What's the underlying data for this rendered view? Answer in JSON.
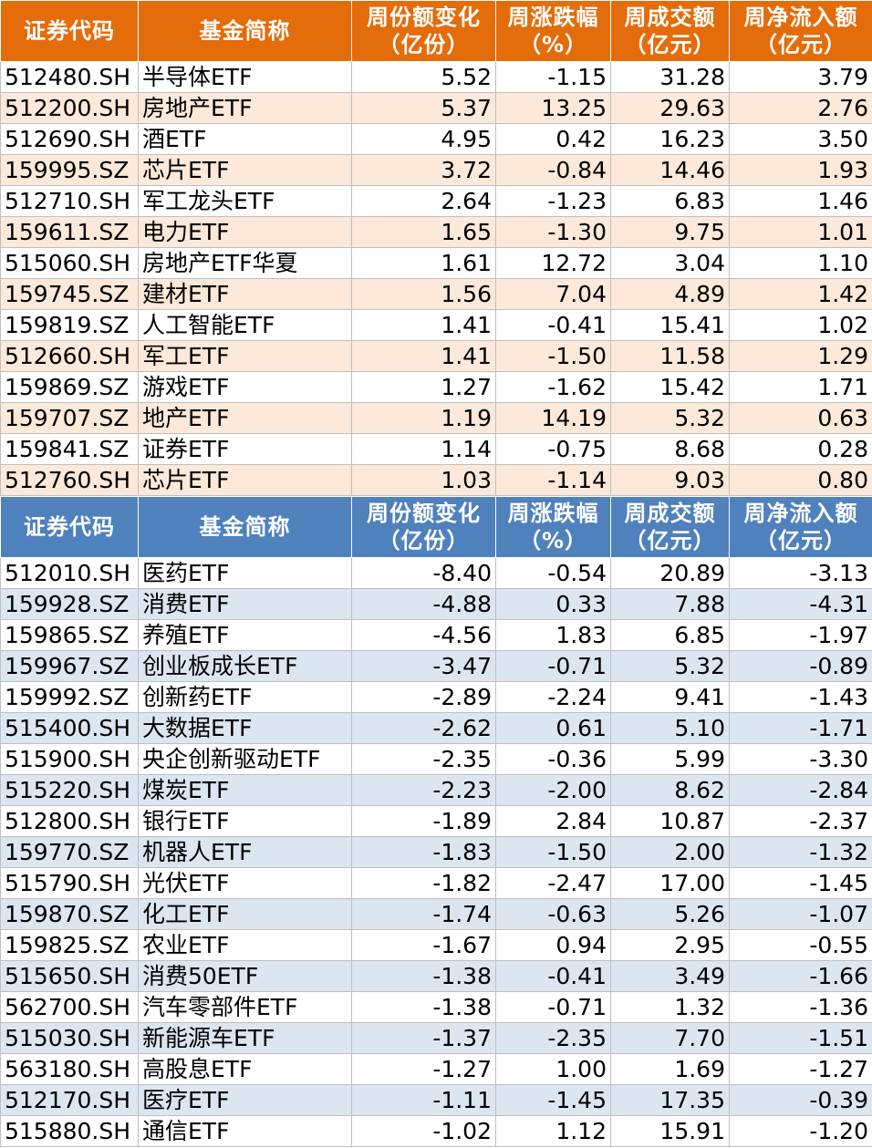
{
  "top_table": {
    "headers": [
      "证券代码",
      "基金简称",
      "周份额变化\n（亿份）",
      "周涨跌幅\n（%）",
      "周成交额\n（亿元）",
      "周净流入额\n（亿元）"
    ],
    "rows": [
      [
        "512480.SH",
        "半导体ETF",
        "5.52",
        "-1.15",
        "31.28",
        "3.79"
      ],
      [
        "512200.SH",
        "房地产ETF",
        "5.37",
        "13.25",
        "29.63",
        "2.76"
      ],
      [
        "512690.SH",
        "酒ETF",
        "4.95",
        "0.42",
        "16.23",
        "3.50"
      ],
      [
        "159995.SZ",
        "芯片ETF",
        "3.72",
        "-0.84",
        "14.46",
        "1.93"
      ],
      [
        "512710.SH",
        "军工龙头ETF",
        "2.64",
        "-1.23",
        "6.83",
        "1.46"
      ],
      [
        "159611.SZ",
        "电力ETF",
        "1.65",
        "-1.30",
        "9.75",
        "1.01"
      ],
      [
        "515060.SH",
        "房地产ETF华夏",
        "1.61",
        "12.72",
        "3.04",
        "1.10"
      ],
      [
        "159745.SZ",
        "建材ETF",
        "1.56",
        "7.04",
        "4.89",
        "1.42"
      ],
      [
        "159819.SZ",
        "人工智能ETF",
        "1.41",
        "-0.41",
        "15.41",
        "1.02"
      ],
      [
        "512660.SH",
        "军工ETF",
        "1.41",
        "-1.50",
        "11.58",
        "1.29"
      ],
      [
        "159869.SZ",
        "游戏ETF",
        "1.27",
        "-1.62",
        "15.42",
        "1.71"
      ],
      [
        "159707.SZ",
        "地产ETF",
        "1.19",
        "14.19",
        "5.32",
        "0.63"
      ],
      [
        "159841.SZ",
        "证券ETF",
        "1.14",
        "-0.75",
        "8.68",
        "0.28"
      ],
      [
        "512760.SH",
        "芯片ETF",
        "1.03",
        "-1.14",
        "9.03",
        "0.80"
      ]
    ]
  },
  "bottom_table": {
    "headers": [
      "证券代码",
      "基金简称",
      "周份额变化\n（亿份）",
      "周涨跌幅\n（%）",
      "周成交额\n（亿元）",
      "周净流入额\n（亿元）"
    ],
    "rows": [
      [
        "512010.SH",
        "医药ETF",
        "-8.40",
        "-0.54",
        "20.89",
        "-3.13"
      ],
      [
        "159928.SZ",
        "消费ETF",
        "-4.88",
        "0.33",
        "7.88",
        "-4.31"
      ],
      [
        "159865.SZ",
        "养殖ETF",
        "-4.56",
        "1.83",
        "6.85",
        "-1.97"
      ],
      [
        "159967.SZ",
        "创业板成长ETF",
        "-3.47",
        "-0.71",
        "5.32",
        "-0.89"
      ],
      [
        "159992.SZ",
        "创新药ETF",
        "-2.89",
        "-2.24",
        "9.41",
        "-1.43"
      ],
      [
        "515400.SH",
        "大数据ETF",
        "-2.62",
        "0.61",
        "5.10",
        "-1.71"
      ],
      [
        "515900.SH",
        "央企创新驱动ETF",
        "-2.35",
        "-0.36",
        "5.99",
        "-3.30"
      ],
      [
        "515220.SH",
        "煤炭ETF",
        "-2.23",
        "-2.00",
        "8.62",
        "-2.84"
      ],
      [
        "512800.SH",
        "银行ETF",
        "-1.89",
        "2.84",
        "10.87",
        "-2.37"
      ],
      [
        "159770.SZ",
        "机器人ETF",
        "-1.83",
        "-1.50",
        "2.00",
        "-1.32"
      ],
      [
        "515790.SH",
        "光伏ETF",
        "-1.82",
        "-2.47",
        "17.00",
        "-1.45"
      ],
      [
        "159870.SZ",
        "化工ETF",
        "-1.74",
        "-0.63",
        "5.26",
        "-1.07"
      ],
      [
        "159825.SZ",
        "农业ETF",
        "-1.67",
        "0.94",
        "2.95",
        "-0.55"
      ],
      [
        "515650.SH",
        "消费50ETF",
        "-1.38",
        "-0.41",
        "3.49",
        "-1.66"
      ],
      [
        "562700.SH",
        "汽车零部件ETF",
        "-1.38",
        "-0.71",
        "1.32",
        "-1.36"
      ],
      [
        "515030.SH",
        "新能源车ETF",
        "-1.37",
        "-2.35",
        "7.70",
        "-1.51"
      ],
      [
        "563180.SH",
        "高股息ETF",
        "-1.27",
        "1.00",
        "1.69",
        "-1.27"
      ],
      [
        "512170.SH",
        "医疗ETF",
        "-1.11",
        "-1.45",
        "17.35",
        "-0.39"
      ],
      [
        "515880.SH",
        "通信ETF",
        "-1.02",
        "1.12",
        "15.91",
        "-1.20"
      ]
    ]
  },
  "colors": {
    "top_header": "#E46C0A",
    "top_stripe": "#FDE9D9",
    "bottom_header": "#4F81BD",
    "bottom_stripe": "#DCE6F1"
  }
}
